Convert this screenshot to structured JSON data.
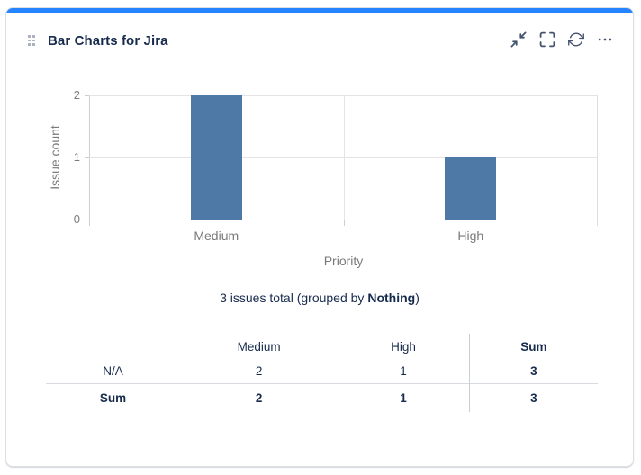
{
  "card": {
    "accent_color": "#2684ff"
  },
  "header": {
    "title": "Bar Charts for Jira",
    "icons": [
      "drag-handle-icon",
      "collapse-icon",
      "fullscreen-icon",
      "refresh-icon",
      "more-options-icon"
    ]
  },
  "chart_data": {
    "type": "bar",
    "categories": [
      "Medium",
      "High"
    ],
    "values": [
      2,
      1
    ],
    "title": "",
    "xlabel": "Priority",
    "ylabel": "Issue count",
    "yticks": [
      0,
      1,
      2
    ],
    "ylim": [
      0,
      2
    ],
    "bar_color": "#4e79a7",
    "grid": "horizontal"
  },
  "summary": {
    "prefix": "3 issues total (grouped by ",
    "group_by": "Nothing",
    "suffix": ")"
  },
  "table": {
    "col_headers": [
      "",
      "Medium",
      "High",
      "Sum"
    ],
    "rows": [
      {
        "label": "N/A",
        "values": [
          "2",
          "1",
          "3"
        ]
      },
      {
        "label": "Sum",
        "values": [
          "2",
          "1",
          "3"
        ]
      }
    ]
  }
}
